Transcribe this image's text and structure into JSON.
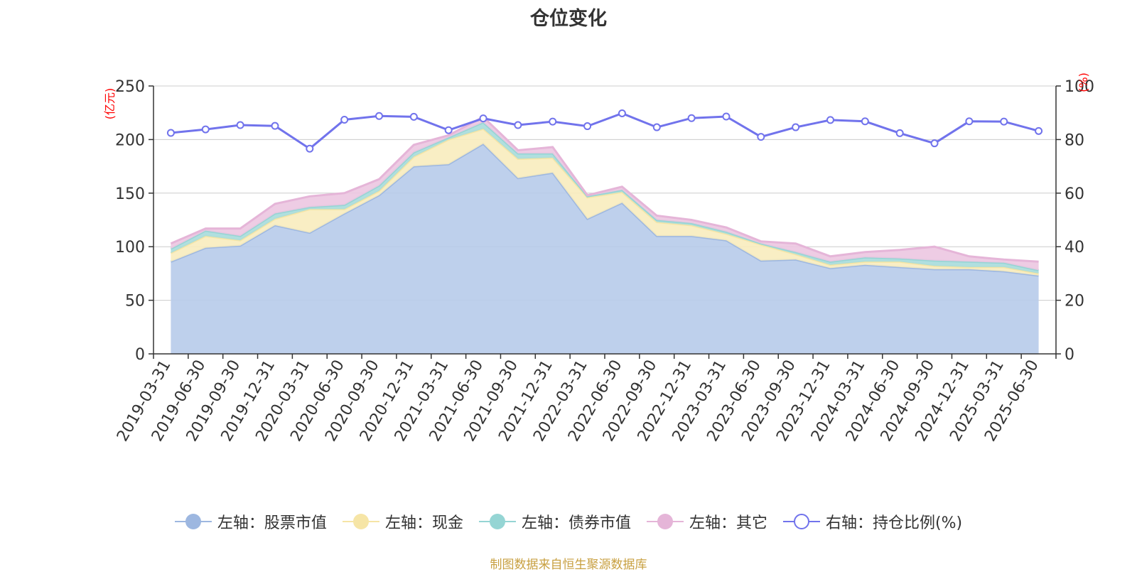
{
  "chart_data": {
    "type": "area",
    "title": "仓位变化",
    "left_axis_unit": "(亿元)",
    "right_axis_unit": "(%)",
    "categories": [
      "2019-03-31",
      "2019-06-30",
      "2019-09-30",
      "2019-12-31",
      "2020-03-31",
      "2020-06-30",
      "2020-09-30",
      "2020-12-31",
      "2021-03-31",
      "2021-06-30",
      "2021-09-30",
      "2021-12-31",
      "2022-03-31",
      "2022-06-30",
      "2022-09-30",
      "2022-12-31",
      "2023-03-31",
      "2023-06-30",
      "2023-09-30",
      "2023-12-31",
      "2024-03-31",
      "2024-06-30",
      "2024-09-30",
      "2024-12-31",
      "2025-03-31",
      "2025-06-30"
    ],
    "left_axis": {
      "min": 0,
      "max": 250,
      "ticks": [
        0,
        50,
        100,
        150,
        200,
        250
      ]
    },
    "right_axis": {
      "min": 0,
      "max": 100,
      "ticks": [
        0,
        20,
        40,
        60,
        80,
        100
      ]
    },
    "grid": true,
    "legend_position": "bottom",
    "stacked_series": [
      {
        "name": "左轴：股票市值",
        "color": "#9db7e0",
        "fill": "#b7cbea",
        "values": [
          86,
          99,
          101,
          120,
          113,
          131,
          148,
          175,
          177,
          196,
          164,
          169,
          126,
          141,
          110,
          110,
          106,
          87,
          88,
          80,
          83,
          81,
          79,
          79,
          77,
          73
        ]
      },
      {
        "name": "左轴：现金",
        "color": "#f6e5a6",
        "fill": "#f8ecbe",
        "values": [
          8,
          11,
          5,
          6,
          22,
          4,
          4,
          9,
          23,
          14,
          18,
          14,
          20,
          10,
          13,
          10,
          6,
          15,
          5,
          3,
          3,
          5,
          3,
          2,
          4,
          2
        ]
      },
      {
        "name": "左轴：债券市值",
        "color": "#95d5d4",
        "fill": "#a7dcdb",
        "values": [
          4,
          5,
          4,
          5,
          2,
          4,
          5,
          4,
          2,
          6,
          5,
          4,
          1,
          2,
          2,
          2,
          2,
          1,
          2,
          3,
          4,
          3,
          5,
          5,
          4,
          3
        ]
      },
      {
        "name": "左轴：其它",
        "color": "#e5b5d8",
        "fill": "#ecc7e1",
        "values": [
          5,
          2,
          7,
          9,
          10,
          11,
          6,
          7,
          2,
          5,
          3,
          6,
          1,
          3,
          4,
          3,
          4,
          2,
          8,
          5,
          5,
          8,
          13,
          5,
          3,
          8
        ]
      }
    ],
    "line_series": {
      "name": "右轴：持仓比例(%)",
      "color": "#7173ec",
      "axis": "right",
      "values": [
        82.5,
        83.8,
        85.4,
        85.1,
        76.6,
        87.4,
        88.8,
        88.5,
        83.5,
        87.9,
        85.4,
        86.7,
        85.0,
        89.8,
        84.6,
        88.0,
        88.6,
        81.0,
        84.6,
        87.3,
        86.8,
        82.4,
        78.6,
        86.8,
        86.7,
        83.2
      ]
    }
  },
  "legend": {
    "items": [
      {
        "label": "左轴：股票市值",
        "color": "#9db7e0",
        "symbol": "filled-circle"
      },
      {
        "label": "左轴：现金",
        "color": "#f6e5a6",
        "symbol": "filled-circle"
      },
      {
        "label": "左轴：债券市值",
        "color": "#95d5d4",
        "symbol": "filled-circle"
      },
      {
        "label": "左轴：其它",
        "color": "#e5b5d8",
        "symbol": "filled-circle"
      },
      {
        "label": "右轴：持仓比例(%)",
        "color": "#7173ec",
        "symbol": "hollow-circle"
      }
    ]
  },
  "source_note": "制图数据来自恒生聚源数据库"
}
